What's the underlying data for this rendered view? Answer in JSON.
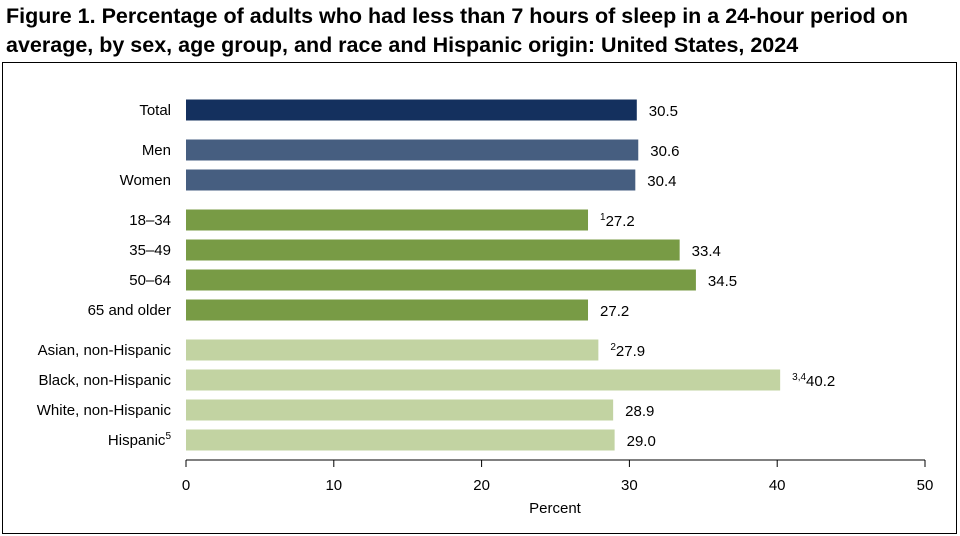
{
  "chart_data": {
    "type": "bar",
    "orientation": "horizontal",
    "title": "Figure 1. Percentage of adults who had less than 7 hours of sleep in a 24-hour period on average, by sex, age group, and race and Hispanic origin: United States, 2024",
    "xlabel": "Percent",
    "ylabel": "",
    "xlim": [
      0,
      50
    ],
    "xticks": [
      0,
      10,
      20,
      30,
      40,
      50
    ],
    "grid": false,
    "legend": "none",
    "categories": [
      {
        "label": "Total",
        "sup": "",
        "value": 30.5,
        "value_sup": "",
        "group": "total",
        "color": "#14305e"
      },
      {
        "label": "Men",
        "sup": "",
        "value": 30.6,
        "value_sup": "",
        "group": "sex",
        "color": "#465e80"
      },
      {
        "label": "Women",
        "sup": "",
        "value": 30.4,
        "value_sup": "",
        "group": "sex",
        "color": "#465e80"
      },
      {
        "label": "18–34",
        "sup": "",
        "value": 27.2,
        "value_sup": "1",
        "group": "age",
        "color": "#789b45"
      },
      {
        "label": "35–49",
        "sup": "",
        "value": 33.4,
        "value_sup": "",
        "group": "age",
        "color": "#789b45"
      },
      {
        "label": "50–64",
        "sup": "",
        "value": 34.5,
        "value_sup": "",
        "group": "age",
        "color": "#789b45"
      },
      {
        "label": "65 and older",
        "sup": "",
        "value": 27.2,
        "value_sup": "",
        "group": "age",
        "color": "#789b45"
      },
      {
        "label": "Asian, non-Hispanic",
        "sup": "",
        "value": 27.9,
        "value_sup": "2",
        "group": "race",
        "color": "#c2d3a2"
      },
      {
        "label": "Black, non-Hispanic",
        "sup": "",
        "value": 40.2,
        "value_sup": "3,4",
        "group": "race",
        "color": "#c2d3a2"
      },
      {
        "label": "White, non-Hispanic",
        "sup": "",
        "value": 28.9,
        "value_sup": "",
        "group": "race",
        "color": "#c2d3a2"
      },
      {
        "label": "Hispanic",
        "sup": "5",
        "value": 29.0,
        "value_sup": "",
        "group": "race",
        "color": "#c2d3a2"
      }
    ]
  }
}
